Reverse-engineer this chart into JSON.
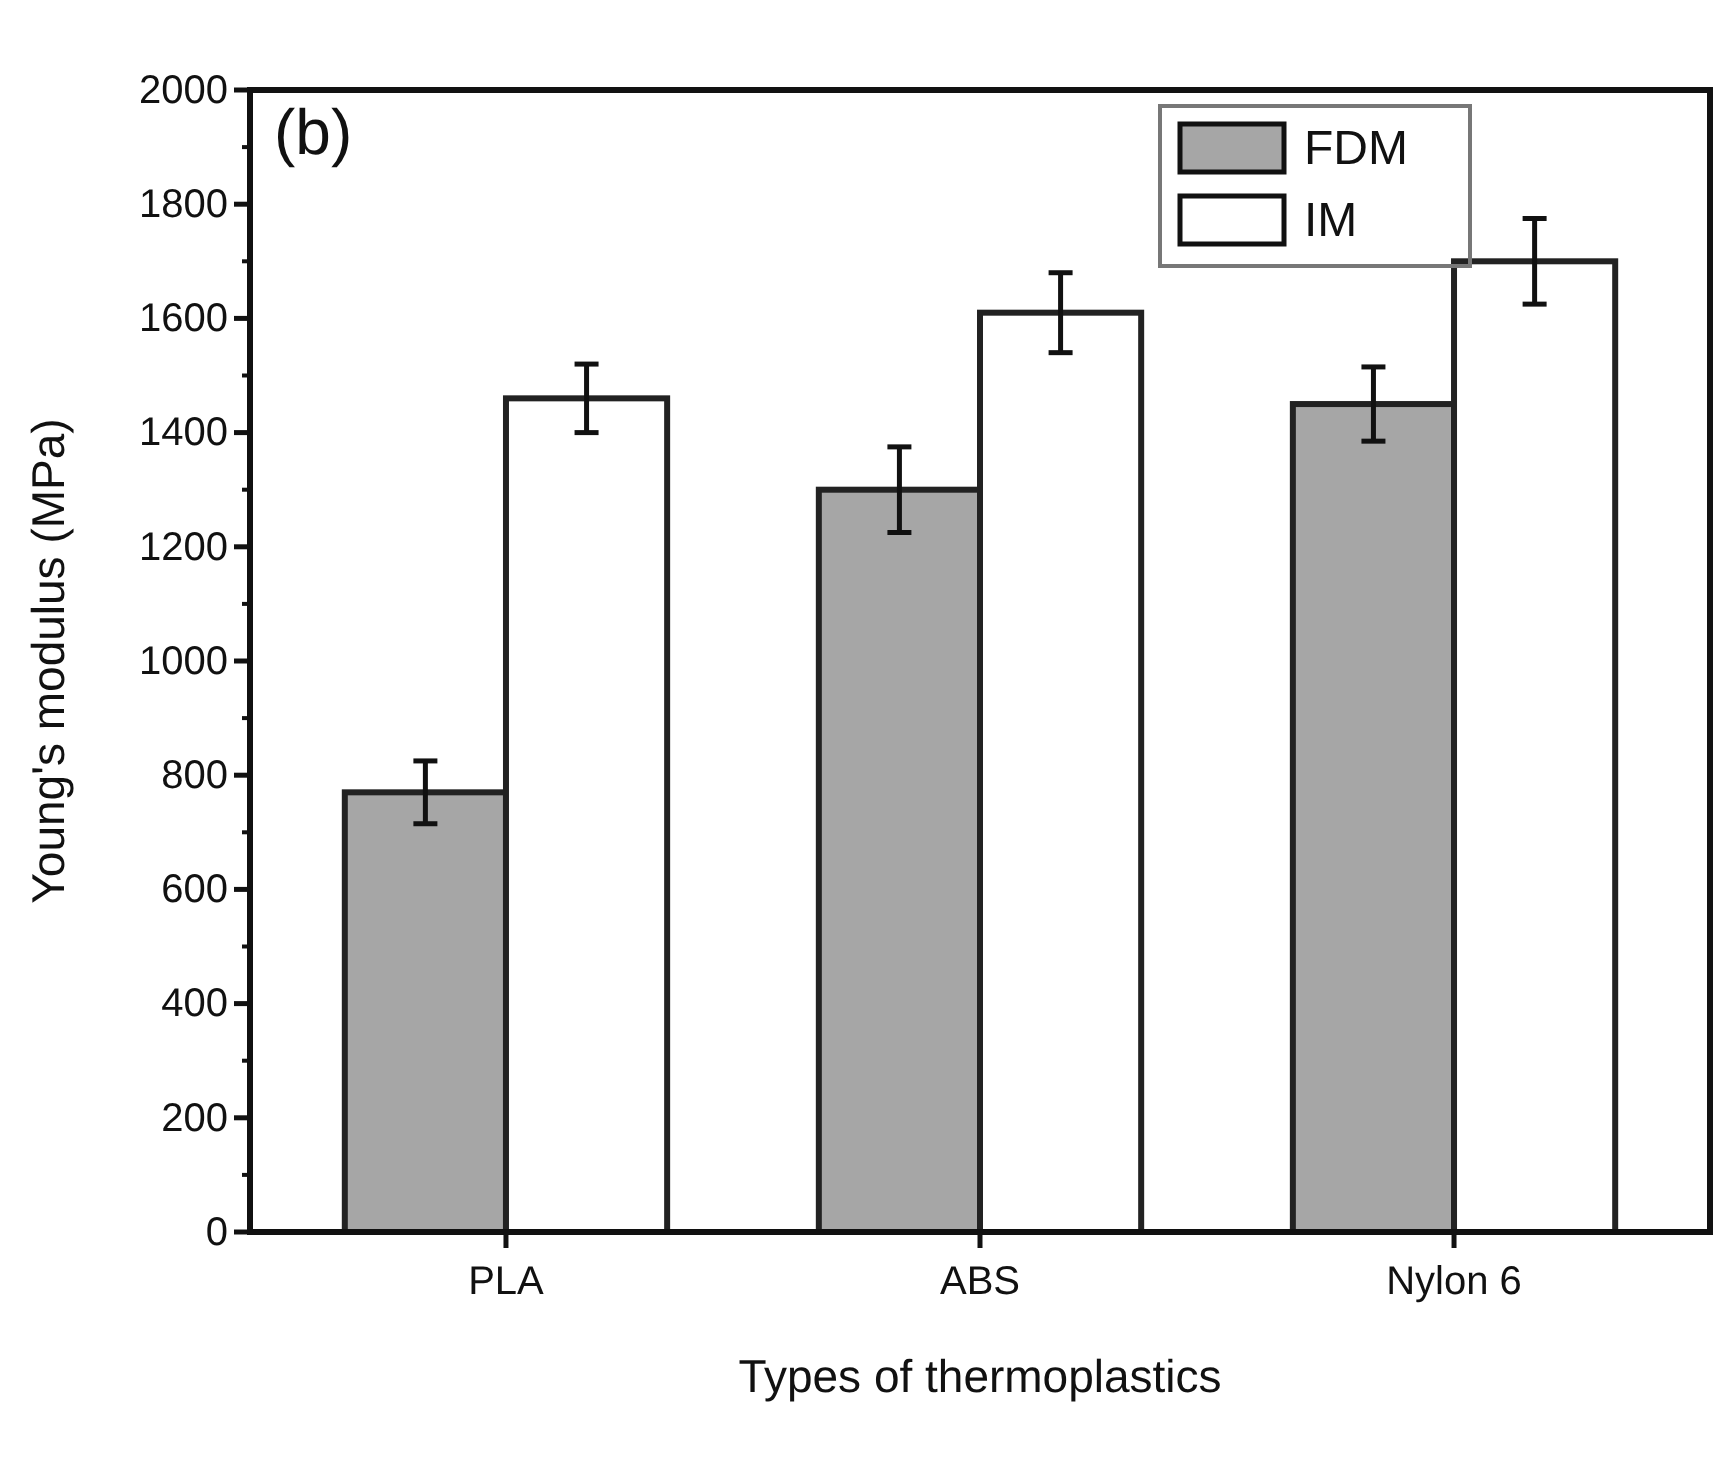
{
  "chart_data": {
    "type": "bar",
    "xlabel": "Types of thermoplastics",
    "ylabel": "Young's modulus (MPa)",
    "annotations": [
      "(b)"
    ],
    "categories": [
      "PLA",
      "ABS",
      "Nylon 6"
    ],
    "series": [
      {
        "name": "FDM",
        "color": "#a6a6a6",
        "values": [
          770,
          1300,
          1450
        ],
        "errors": [
          55,
          75,
          65
        ]
      },
      {
        "name": "IM",
        "color": "#ffffff",
        "values": [
          1460,
          1610,
          1700
        ],
        "errors": [
          60,
          70,
          75
        ]
      }
    ],
    "ylim": [
      0,
      2000
    ],
    "yticks": [
      0,
      200,
      400,
      600,
      800,
      1000,
      1200,
      1400,
      1600,
      1800,
      2000
    ],
    "legend": "top right"
  }
}
